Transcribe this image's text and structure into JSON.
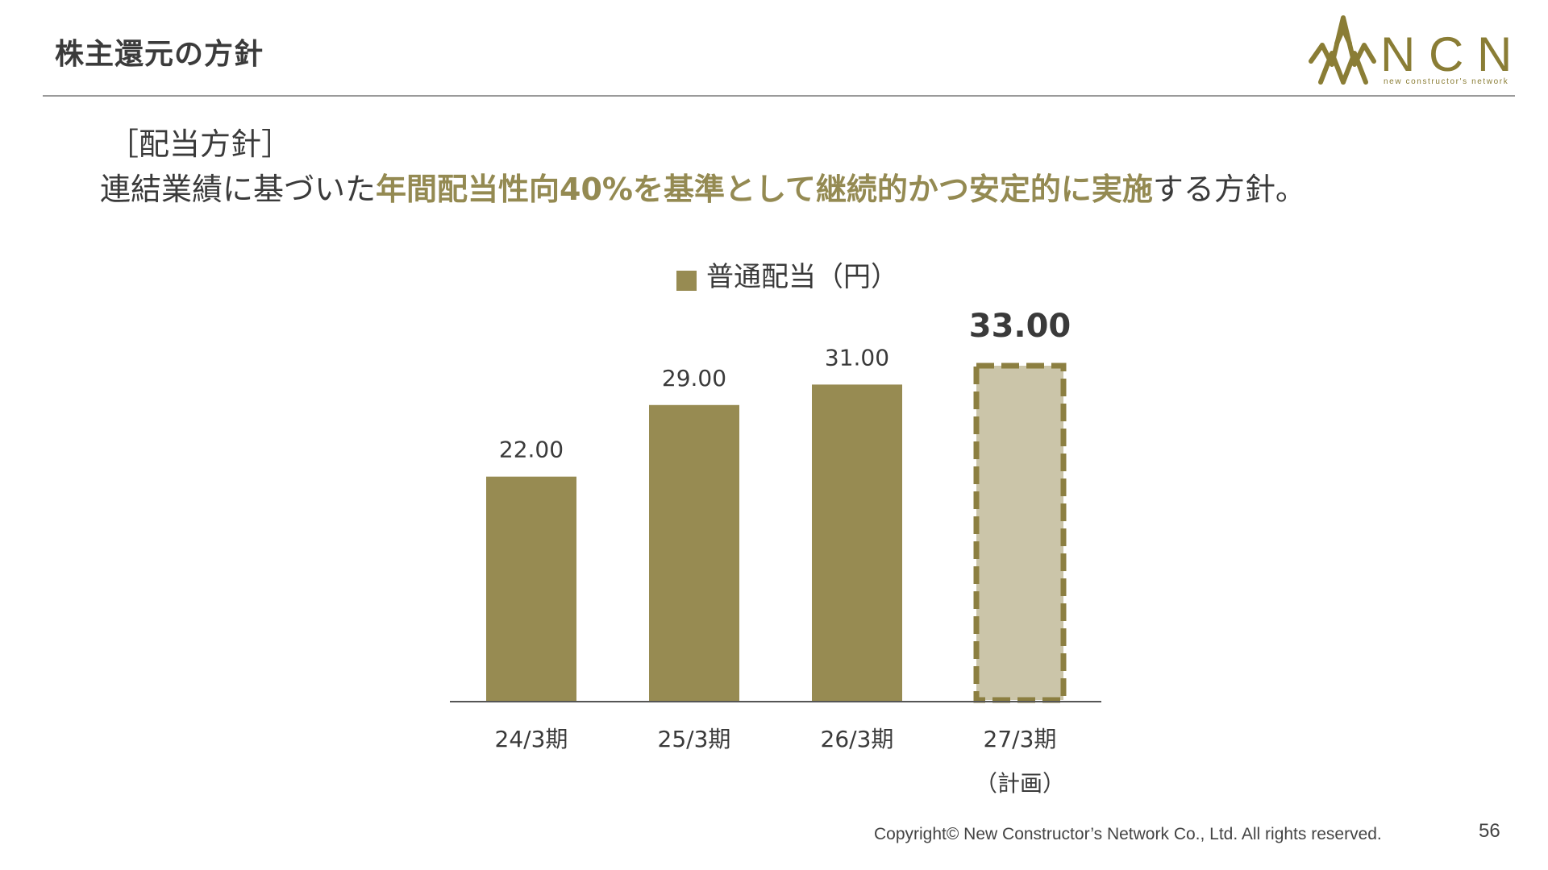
{
  "slide": {
    "title": "株主還元の方針",
    "page_number": "56",
    "copyright": "Copyright© New Constructor’s Network Co., Ltd. All rights reserved."
  },
  "logo": {
    "wordmark": "N C N",
    "tagline": "new constructor's network",
    "color": "#8a7d35"
  },
  "policy": {
    "heading": "［配当方針］",
    "text_before": "連結業績に基づいた",
    "text_highlight": "年間配当性向40%を基準として継続的かつ安定的に実施",
    "text_after": "する方針。",
    "highlight_color": "#948a52"
  },
  "chart_data": {
    "type": "bar",
    "legend": "普通配当（円）",
    "legend_position": "top-center",
    "categories": [
      "24/3期",
      "25/3期",
      "26/3期",
      "27/3期"
    ],
    "category_notes": [
      "",
      "",
      "",
      "（計画）"
    ],
    "series": [
      {
        "name": "普通配当（円）",
        "values": [
          22.0,
          29.0,
          31.0,
          33.0
        ],
        "value_labels": [
          "22.00",
          "29.00",
          "31.00",
          "33.00"
        ],
        "planned": [
          false,
          false,
          false,
          true
        ]
      }
    ],
    "ylim": [
      0,
      33
    ],
    "grid": false,
    "colors": {
      "actual": "#978b52",
      "planned_fill": "#cbc5a9",
      "planned_border": "#8c7f41",
      "axis": "#555555",
      "label": "#3a3a3a"
    }
  }
}
